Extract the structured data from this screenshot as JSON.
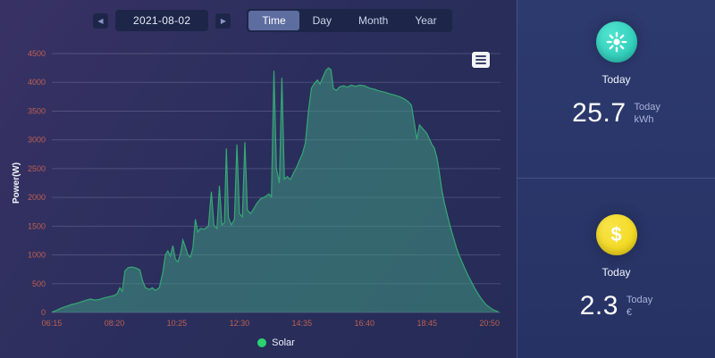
{
  "toolbar": {
    "date": "2021-08-02",
    "prev": "◀",
    "next": "▶",
    "tabs": [
      "Time",
      "Day",
      "Month",
      "Year"
    ],
    "active_tab": "Time"
  },
  "colors": {
    "grid": "rgba(205,214,240,0.20)",
    "axis_label": "#bf5f52",
    "axis_title": "#f2f4fb",
    "line": "#35a874",
    "area_fill": "rgba(64,152,130,0.55)",
    "legend_dot": "#2bd36f",
    "badge_teal": "#24c7b4",
    "badge_yellow": "#f2d50f"
  },
  "chart_data": {
    "type": "area",
    "title": "",
    "xlabel": "",
    "ylabel": "Power(W)",
    "ylim": [
      0,
      4500
    ],
    "ytick_step": 500,
    "grid": true,
    "legend_position": "bottom",
    "x_ticks": [
      "06:15",
      "08:20",
      "10:25",
      "12:30",
      "14:35",
      "16:40",
      "18:45",
      "20:50"
    ],
    "x_tick_minutes": [
      375,
      500,
      625,
      750,
      875,
      1000,
      1125,
      1250
    ],
    "xlim_minutes": [
      375,
      1272
    ],
    "series": [
      {
        "name": "Solar",
        "points": [
          [
            375,
            5
          ],
          [
            385,
            40
          ],
          [
            395,
            80
          ],
          [
            405,
            110
          ],
          [
            415,
            140
          ],
          [
            425,
            160
          ],
          [
            435,
            190
          ],
          [
            445,
            215
          ],
          [
            452,
            235
          ],
          [
            460,
            215
          ],
          [
            470,
            225
          ],
          [
            480,
            255
          ],
          [
            490,
            275
          ],
          [
            500,
            295
          ],
          [
            506,
            330
          ],
          [
            511,
            430
          ],
          [
            516,
            370
          ],
          [
            521,
            720
          ],
          [
            528,
            780
          ],
          [
            536,
            790
          ],
          [
            544,
            770
          ],
          [
            551,
            740
          ],
          [
            556,
            560
          ],
          [
            562,
            430
          ],
          [
            570,
            400
          ],
          [
            576,
            430
          ],
          [
            582,
            385
          ],
          [
            590,
            430
          ],
          [
            597,
            700
          ],
          [
            602,
            1000
          ],
          [
            607,
            1070
          ],
          [
            612,
            980
          ],
          [
            617,
            1160
          ],
          [
            622,
            930
          ],
          [
            627,
            880
          ],
          [
            632,
            1010
          ],
          [
            637,
            1260
          ],
          [
            642,
            1140
          ],
          [
            647,
            1000
          ],
          [
            652,
            960
          ],
          [
            657,
            1120
          ],
          [
            662,
            1620
          ],
          [
            667,
            1400
          ],
          [
            672,
            1460
          ],
          [
            680,
            1450
          ],
          [
            688,
            1500
          ],
          [
            694,
            2100
          ],
          [
            699,
            1520
          ],
          [
            705,
            1460
          ],
          [
            710,
            2200
          ],
          [
            715,
            1520
          ],
          [
            720,
            1560
          ],
          [
            724,
            2850
          ],
          [
            728,
            1650
          ],
          [
            734,
            1520
          ],
          [
            740,
            1620
          ],
          [
            745,
            2920
          ],
          [
            750,
            1720
          ],
          [
            756,
            1660
          ],
          [
            761,
            2960
          ],
          [
            766,
            1780
          ],
          [
            772,
            1720
          ],
          [
            778,
            1790
          ],
          [
            785,
            1900
          ],
          [
            793,
            1980
          ],
          [
            801,
            2010
          ],
          [
            809,
            2060
          ],
          [
            814,
            2010
          ],
          [
            819,
            4200
          ],
          [
            824,
            2500
          ],
          [
            830,
            2250
          ],
          [
            835,
            4080
          ],
          [
            840,
            2320
          ],
          [
            846,
            2360
          ],
          [
            852,
            2310
          ],
          [
            858,
            2420
          ],
          [
            864,
            2520
          ],
          [
            870,
            2640
          ],
          [
            876,
            2760
          ],
          [
            882,
            2950
          ],
          [
            888,
            3500
          ],
          [
            894,
            3900
          ],
          [
            900,
            3980
          ],
          [
            906,
            4040
          ],
          [
            911,
            3970
          ],
          [
            917,
            4090
          ],
          [
            923,
            4210
          ],
          [
            928,
            4250
          ],
          [
            933,
            4220
          ],
          [
            938,
            3890
          ],
          [
            944,
            3860
          ],
          [
            950,
            3920
          ],
          [
            958,
            3940
          ],
          [
            966,
            3920
          ],
          [
            974,
            3950
          ],
          [
            982,
            3930
          ],
          [
            991,
            3950
          ],
          [
            1000,
            3940
          ],
          [
            1010,
            3900
          ],
          [
            1020,
            3880
          ],
          [
            1030,
            3850
          ],
          [
            1040,
            3830
          ],
          [
            1050,
            3800
          ],
          [
            1060,
            3780
          ],
          [
            1070,
            3750
          ],
          [
            1080,
            3710
          ],
          [
            1088,
            3660
          ],
          [
            1094,
            3600
          ],
          [
            1100,
            3280
          ],
          [
            1105,
            3010
          ],
          [
            1110,
            3260
          ],
          [
            1116,
            3200
          ],
          [
            1121,
            3150
          ],
          [
            1125,
            3110
          ],
          [
            1130,
            3010
          ],
          [
            1135,
            2920
          ],
          [
            1140,
            2850
          ],
          [
            1145,
            2690
          ],
          [
            1150,
            2420
          ],
          [
            1155,
            2120
          ],
          [
            1160,
            1900
          ],
          [
            1166,
            1680
          ],
          [
            1172,
            1480
          ],
          [
            1178,
            1300
          ],
          [
            1184,
            1120
          ],
          [
            1190,
            980
          ],
          [
            1196,
            860
          ],
          [
            1202,
            740
          ],
          [
            1208,
            630
          ],
          [
            1214,
            530
          ],
          [
            1220,
            430
          ],
          [
            1226,
            340
          ],
          [
            1232,
            260
          ],
          [
            1238,
            190
          ],
          [
            1244,
            130
          ],
          [
            1250,
            90
          ],
          [
            1256,
            55
          ],
          [
            1262,
            30
          ],
          [
            1268,
            10
          ]
        ]
      }
    ]
  },
  "legend": {
    "label": "Solar"
  },
  "cards": [
    {
      "icon": "sun-icon",
      "badge_label": "Today",
      "value": "25.7",
      "unit_top": "Today",
      "unit_bottom": "kWh"
    },
    {
      "icon": "dollar-icon",
      "badge_label": "Today",
      "value": "2.3",
      "unit_top": "Today",
      "unit_bottom": "€"
    }
  ]
}
